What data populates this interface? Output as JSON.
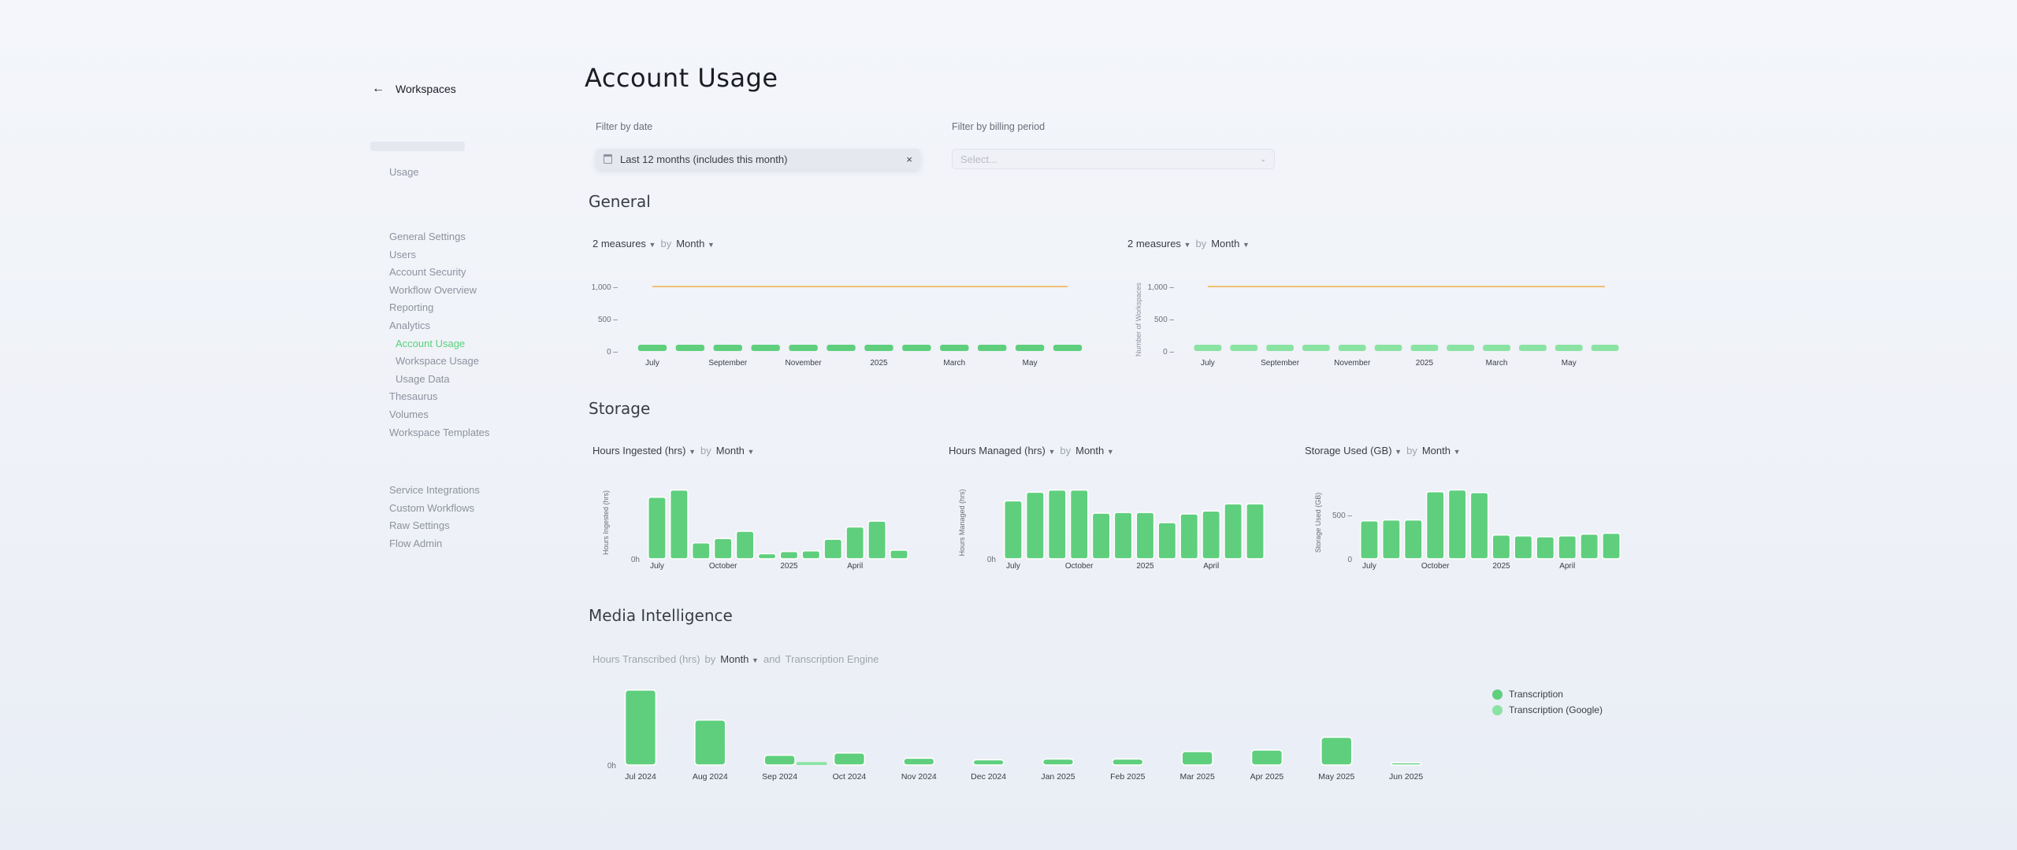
{
  "sidebar": {
    "back_label": "Workspaces",
    "usage_label": "Usage",
    "group1": [
      "General Settings",
      "Users",
      "Account Security",
      "Workflow Overview",
      "Reporting",
      "Analytics"
    ],
    "analytics_sub": [
      "Account Usage",
      "Workspace Usage",
      "Usage Data"
    ],
    "group1b": [
      "Thesaurus",
      "Volumes",
      "Workspace Templates"
    ],
    "group2": [
      "Service Integrations",
      "Custom Workflows",
      "Raw Settings",
      "Flow Admin"
    ]
  },
  "header": {
    "title": "Account Usage",
    "filter_date_label": "Filter by date",
    "filter_date_value": "Last 12 months (includes this month)",
    "filter_billing_label": "Filter by billing period",
    "filter_billing_placeholder": "Select..."
  },
  "general": {
    "title": "General",
    "left": {
      "measures": "2 measures",
      "by": "by",
      "group": "Month"
    },
    "right": {
      "measures": "2 measures",
      "by": "by",
      "group": "Month",
      "ylabel": "Number of Workspaces"
    }
  },
  "storage": {
    "title": "Storage",
    "c1": {
      "measure": "Hours Ingested (hrs)",
      "by": "by",
      "group": "Month",
      "ylabel": "Hours Ingested (hrs)"
    },
    "c2": {
      "measure": "Hours Managed (hrs)",
      "by": "by",
      "group": "Month",
      "ylabel": "Hours Managed (hrs)"
    },
    "c3": {
      "measure": "Storage Used (GB)",
      "by": "by",
      "group": "Month",
      "ylabel": "Storage Used (GB)"
    }
  },
  "media": {
    "title": "Media Intelligence",
    "measure": "Hours Transcribed (hrs)",
    "by": "by",
    "group": "Month",
    "and": "and",
    "group2": "Transcription Engine",
    "legend": [
      "Transcription",
      "Transcription (Google)"
    ]
  },
  "colors": {
    "bar": "#5fcf7e",
    "bar_light": "#8be3a3",
    "line": "#f0b04a",
    "accent": "#56d27a"
  },
  "icons": {
    "back": "arrow-left-icon",
    "calendar": "calendar-icon",
    "clear": "close-icon",
    "caret": "chevron-down-icon"
  },
  "chart_data": [
    {
      "type": "bar",
      "id": "general-left",
      "categories": [
        "Jul",
        "Aug",
        "Sep",
        "Oct",
        "Nov",
        "Dec",
        "2025",
        "Feb",
        "Mar",
        "Apr",
        "May",
        "Jun"
      ],
      "tick_labels": [
        "July",
        "September",
        "November",
        "2025",
        "March",
        "May"
      ],
      "y_ticks": [
        "1,000",
        "500",
        "0"
      ],
      "ylim": [
        0,
        1100
      ],
      "series": [
        {
          "values": [
            1,
            1,
            1,
            1,
            1,
            1,
            1,
            1,
            1,
            1,
            1,
            1
          ]
        },
        {
          "values": [
            1000,
            1000,
            1000,
            1000,
            1000,
            1000,
            1000,
            1000,
            1000,
            1000,
            1000,
            1000
          ]
        }
      ]
    },
    {
      "type": "bar",
      "id": "general-right",
      "ylabel": "Number of Workspaces",
      "categories": [
        "Jul",
        "Aug",
        "Sep",
        "Oct",
        "Nov",
        "Dec",
        "2025",
        "Feb",
        "Mar",
        "Apr",
        "May",
        "Jun"
      ],
      "tick_labels": [
        "July",
        "September",
        "November",
        "2025",
        "March",
        "May"
      ],
      "y_ticks": [
        "1,000",
        "500",
        "0"
      ],
      "ylim": [
        0,
        1100
      ],
      "series": [
        {
          "values": [
            5,
            5,
            5,
            5,
            5,
            5,
            5,
            5,
            5,
            5,
            5,
            5
          ]
        },
        {
          "values": [
            1000,
            1000,
            1000,
            1000,
            1000,
            1000,
            1000,
            1000,
            1000,
            1000,
            1000,
            1000
          ]
        }
      ]
    },
    {
      "type": "bar",
      "id": "storage-ingested",
      "ylabel": "Hours Ingested (hrs)",
      "categories": [
        "Jul",
        "Aug",
        "Sep",
        "Oct",
        "Nov",
        "Dec",
        "2025",
        "Feb",
        "Mar",
        "Apr",
        "May",
        "Jun"
      ],
      "tick_labels": [
        "July",
        "October",
        "2025",
        "April"
      ],
      "y_ticks": [
        "0h"
      ],
      "values": [
        85,
        95,
        22,
        28,
        38,
        7,
        10,
        11,
        27,
        44,
        52,
        12
      ],
      "ylim": [
        0,
        100
      ]
    },
    {
      "type": "bar",
      "id": "storage-managed",
      "ylabel": "Hours Managed (hrs)",
      "categories": [
        "Jul",
        "Aug",
        "Sep",
        "Oct",
        "Nov",
        "Dec",
        "2025",
        "Feb",
        "Mar",
        "Apr",
        "May",
        "Jun"
      ],
      "tick_labels": [
        "July",
        "October",
        "2025",
        "April"
      ],
      "y_ticks": [
        "0h"
      ],
      "values": [
        80,
        92,
        95,
        95,
        63,
        64,
        64,
        50,
        62,
        66,
        76,
        76
      ],
      "ylim": [
        0,
        100
      ]
    },
    {
      "type": "bar",
      "id": "storage-used",
      "ylabel": "Storage Used (GB)",
      "categories": [
        "Jul",
        "Aug",
        "Sep",
        "Oct",
        "Nov",
        "Dec",
        "2025",
        "Feb",
        "Mar",
        "Apr",
        "May",
        "Jun"
      ],
      "tick_labels": [
        "July",
        "October",
        "2025",
        "April"
      ],
      "y_ticks": [
        "500",
        "0"
      ],
      "values": [
        430,
        440,
        440,
        760,
        780,
        750,
        270,
        260,
        250,
        260,
        280,
        290
      ],
      "ylim": [
        0,
        820
      ]
    },
    {
      "type": "bar",
      "id": "media-transcribed",
      "categories": [
        "Jul 2024",
        "Aug 2024",
        "Sep 2024",
        "Oct 2024",
        "Nov 2024",
        "Dec 2024",
        "Jan 2025",
        "Feb 2025",
        "Mar 2025",
        "Apr 2025",
        "May 2025",
        "Jun 2025"
      ],
      "y_ticks": [
        "0h"
      ],
      "series": [
        {
          "name": "Transcription",
          "values": [
            100,
            60,
            13,
            16,
            9,
            7,
            8,
            8,
            18,
            20,
            37,
            3
          ]
        },
        {
          "name": "Transcription (Google)",
          "values": [
            0,
            0,
            4,
            0,
            0,
            0,
            0,
            0,
            0,
            0,
            0,
            0
          ]
        }
      ],
      "ylim": [
        0,
        105
      ]
    }
  ]
}
